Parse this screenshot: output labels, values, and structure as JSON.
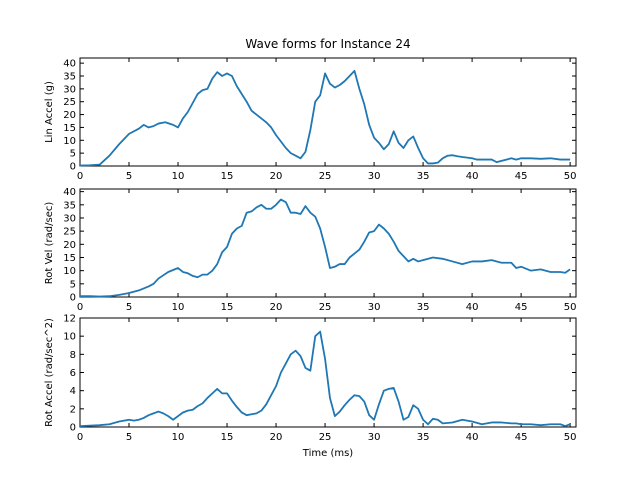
{
  "chart_data": [
    {
      "type": "line",
      "title": "Wave forms for Instance 24",
      "ylabel": "Lin Accel (g)",
      "color": "#1f77b4",
      "x": [
        0,
        1,
        2,
        3,
        4,
        5,
        6,
        6.5,
        7,
        7.5,
        8,
        8.7,
        9.5,
        10,
        10.5,
        11,
        12,
        12.5,
        13,
        13.5,
        14,
        14.5,
        15,
        15.5,
        16,
        17,
        17.5,
        18,
        19,
        19.5,
        20,
        21,
        21.5,
        22,
        22.5,
        23,
        23.5,
        24,
        24.5,
        25,
        25.5,
        26,
        26.5,
        27,
        27.5,
        28,
        28.5,
        29,
        29.5,
        30,
        30.5,
        31,
        31.5,
        32,
        32.5,
        33,
        33.5,
        34,
        34.5,
        35,
        35.5,
        36,
        36.5,
        37,
        37.5,
        38,
        38.5,
        39,
        40,
        40.5,
        41,
        42,
        42.5,
        43,
        44,
        44.5,
        45,
        46,
        47,
        48,
        49,
        50
      ],
      "values": [
        0.2,
        0.3,
        0.5,
        4,
        8.5,
        12.5,
        14.5,
        16,
        15,
        15.5,
        16.5,
        17,
        16,
        15,
        18.5,
        21,
        28,
        29.5,
        30,
        34,
        36.5,
        35,
        36,
        35,
        31,
        25,
        21.5,
        20,
        17,
        15,
        12,
        7,
        5,
        4,
        3,
        5.5,
        14,
        25,
        27.5,
        36,
        32,
        30.5,
        31.5,
        33,
        35,
        37,
        30,
        24,
        16,
        11,
        9,
        6.5,
        8.5,
        13.5,
        9,
        7,
        10,
        11.5,
        7,
        3,
        1,
        1,
        1.3,
        3,
        4,
        4.2,
        3.8,
        3.5,
        3,
        2.5,
        2.5,
        2.5,
        1.5,
        2,
        3,
        2.5,
        3,
        3,
        2.8,
        3,
        2.5,
        2.5
      ],
      "xlim": [
        0,
        50.6
      ],
      "xticks": [
        0,
        5,
        10,
        15,
        20,
        25,
        30,
        35,
        40,
        45,
        50
      ],
      "ylim": [
        0,
        42
      ],
      "yticks": [
        0,
        5,
        10,
        15,
        20,
        25,
        30,
        35,
        40
      ]
    },
    {
      "type": "line",
      "ylabel": "Rot Vel (rad/sec)",
      "color": "#1f77b4",
      "x": [
        0,
        1,
        2,
        3,
        4,
        5,
        6,
        7,
        7.5,
        8,
        9,
        10,
        10.5,
        11,
        11.5,
        12,
        12.5,
        13,
        13.5,
        14,
        14.5,
        15,
        15.5,
        16,
        16.5,
        17,
        17.5,
        18,
        18.5,
        19,
        19.5,
        20,
        20.5,
        21,
        21.5,
        22,
        22.5,
        23,
        23.5,
        24,
        24.5,
        25,
        25.5,
        26,
        26.5,
        27,
        27.5,
        28,
        28.5,
        29,
        29.5,
        30,
        30.5,
        31,
        31.5,
        32,
        32.5,
        33,
        33.5,
        34,
        34.5,
        35,
        36,
        37,
        38,
        39,
        40,
        41,
        42,
        43,
        44,
        44.5,
        45,
        46,
        47,
        48,
        49,
        49.5,
        50
      ],
      "values": [
        0.3,
        0.3,
        0.2,
        0.3,
        0.8,
        1.5,
        2.5,
        4,
        5,
        7,
        9.5,
        11,
        9.5,
        9,
        8,
        7.5,
        8.5,
        8.5,
        10,
        12.5,
        17,
        19,
        24,
        26,
        27,
        32,
        32.5,
        34,
        35,
        33.5,
        33.5,
        35,
        37,
        36,
        32,
        32,
        31.5,
        34.5,
        32,
        30.5,
        26,
        19,
        11,
        11.5,
        12.5,
        12.5,
        15,
        16.5,
        18,
        21,
        24.5,
        25,
        27.5,
        26,
        24,
        21,
        17.5,
        15.5,
        13.5,
        14.5,
        13.5,
        14,
        15,
        14.5,
        13.5,
        12.5,
        13.5,
        13.5,
        14,
        13,
        13,
        11,
        11.5,
        10,
        10.5,
        9.5,
        9.5,
        9.2,
        10.5
      ],
      "xlim": [
        0,
        50.6
      ],
      "xticks": [
        0,
        5,
        10,
        15,
        20,
        25,
        30,
        35,
        40,
        45,
        50
      ],
      "ylim": [
        0,
        41
      ],
      "yticks": [
        0,
        5,
        10,
        15,
        20,
        25,
        30,
        35,
        40
      ]
    },
    {
      "type": "line",
      "ylabel": "Rot Accel (rad/sec^2)",
      "xlabel": "Time (ms)",
      "color": "#1f77b4",
      "x": [
        0,
        1,
        2,
        3,
        4,
        5,
        5.5,
        6,
        6.5,
        7,
        7.5,
        8,
        8.5,
        9,
        9.5,
        10,
        10.5,
        11,
        11.5,
        12,
        12.5,
        13,
        13.5,
        14,
        14.5,
        15,
        15.5,
        16,
        16.5,
        17,
        17.5,
        18,
        18.5,
        19,
        19.5,
        20,
        20.5,
        21,
        21.5,
        22,
        22.5,
        23,
        23.5,
        24,
        24.5,
        25,
        25.5,
        26,
        26.5,
        27,
        27.5,
        28,
        28.5,
        29,
        29.5,
        30,
        30.5,
        31,
        31.5,
        32,
        32.5,
        33,
        33.5,
        34,
        34.5,
        35,
        35.5,
        36,
        36.5,
        37,
        38,
        39,
        40,
        41,
        42,
        43,
        44,
        44.5,
        45,
        46,
        47,
        48,
        49,
        49.5,
        50
      ],
      "values": [
        0.1,
        0.15,
        0.2,
        0.3,
        0.6,
        0.8,
        0.7,
        0.8,
        1.0,
        1.3,
        1.5,
        1.7,
        1.5,
        1.2,
        0.8,
        1.2,
        1.6,
        1.8,
        1.9,
        2.3,
        2.6,
        3.2,
        3.7,
        4.2,
        3.7,
        3.7,
        2.9,
        2.2,
        1.6,
        1.3,
        1.4,
        1.5,
        1.8,
        2.5,
        3.5,
        4.5,
        6,
        7,
        8,
        8.4,
        7.8,
        6.5,
        6.2,
        10,
        10.5,
        7.5,
        3.2,
        1.2,
        1.7,
        2.4,
        3,
        3.5,
        3.4,
        2.8,
        1.3,
        0.8,
        2.5,
        4,
        4.2,
        4.3,
        2.8,
        0.8,
        1.1,
        2.4,
        2,
        0.8,
        0.3,
        0.9,
        0.8,
        0.4,
        0.5,
        0.8,
        0.6,
        0.3,
        0.5,
        0.5,
        0.4,
        0.4,
        0.3,
        0.3,
        0.2,
        0.3,
        0.3,
        0.1,
        0.3
      ],
      "xlim": [
        0,
        50.6
      ],
      "xticks": [
        0,
        5,
        10,
        15,
        20,
        25,
        30,
        35,
        40,
        45,
        50
      ],
      "ylim": [
        0,
        12
      ],
      "yticks": [
        0,
        2,
        4,
        6,
        8,
        10,
        12
      ]
    }
  ]
}
